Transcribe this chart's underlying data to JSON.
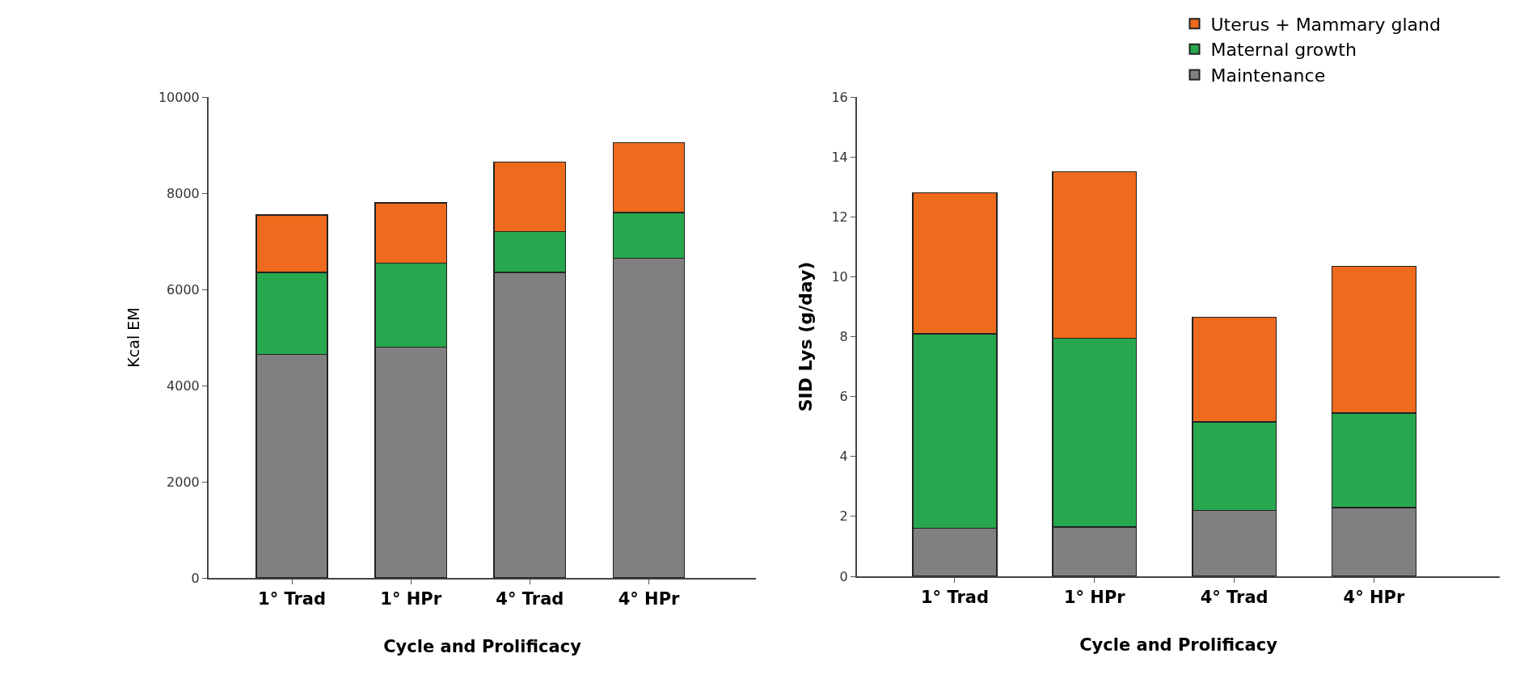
{
  "chart_data": [
    {
      "type": "bar",
      "stacked": true,
      "xlabel": "Cycle and Prolificacy",
      "ylabel": "Kcal EM",
      "categories": [
        "1° Trad",
        "1° HPr",
        "4° Trad",
        "4° HPr"
      ],
      "ylim": [
        0,
        10000
      ],
      "yticks": [
        0,
        2000,
        4000,
        6000,
        8000,
        10000
      ],
      "grid": false,
      "legend": false,
      "series": [
        {
          "color": "#808080",
          "values": [
            4650,
            4800,
            6350,
            6650
          ]
        },
        {
          "color": "#27a84e",
          "values": [
            1700,
            1750,
            850,
            950
          ]
        },
        {
          "color": "#ee6a1c",
          "values": [
            1200,
            1250,
            1450,
            1450
          ]
        }
      ]
    },
    {
      "type": "bar",
      "stacked": true,
      "xlabel": "Cycle and Prolificacy",
      "ylabel": "SID Lys (g/day)",
      "categories": [
        "1° Trad",
        "1° HPr",
        "4° Trad",
        "4° HPr"
      ],
      "ylim": [
        0,
        16
      ],
      "yticks": [
        0,
        2,
        4,
        6,
        8,
        10,
        12,
        14,
        16
      ],
      "grid": false,
      "legend": "top right",
      "series": [
        {
          "name": "Maintenance",
          "color": "#808080",
          "values": [
            1.6,
            1.65,
            2.2,
            2.3
          ]
        },
        {
          "name": "Maternal growth",
          "color": "#27a84e",
          "values": [
            6.5,
            6.3,
            2.95,
            3.15
          ]
        },
        {
          "name": "Uterus + Mammary gland",
          "color": "#ee6a1c",
          "values": [
            4.7,
            5.55,
            3.5,
            4.9
          ]
        }
      ]
    }
  ]
}
